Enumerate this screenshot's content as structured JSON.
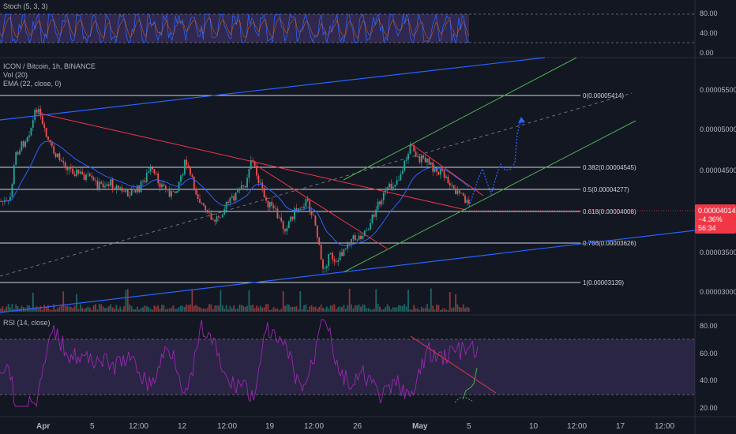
{
  "chart_data": {
    "type": "candlestick",
    "title": "ICON / Bitcoin, 1h, BINANCE",
    "indicators": [
      "Vol (20)",
      "EMA (22, close, 0)"
    ],
    "stoch": {
      "label": "Stoch (5, 3, 3)",
      "ticks": [
        "80.00",
        "40.00",
        "0.00"
      ]
    },
    "rsi": {
      "label": "RSI (14, close)",
      "ticks": [
        "80.00",
        "60.00",
        "40.00",
        "20.00"
      ],
      "band": [
        30,
        70
      ]
    },
    "price_ticks": [
      "0.00005500",
      "0.00005000",
      "0.00004500",
      "0.00003500",
      "0.00003000"
    ],
    "fib_levels": [
      {
        "label": "0(0.00005414)",
        "ratio": 0,
        "price": 5.414e-05
      },
      {
        "label": "0.382(0.00004545)",
        "ratio": 0.382,
        "price": 4.545e-05
      },
      {
        "label": "0.5(0.00004277)",
        "ratio": 0.5,
        "price": 4.277e-05
      },
      {
        "label": "0.618(0.00004008)",
        "ratio": 0.618,
        "price": 4.008e-05
      },
      {
        "label": "0.786(0.00003626)",
        "ratio": 0.786,
        "price": 3.626e-05
      },
      {
        "label": "1(0.00003139)",
        "ratio": 1,
        "price": 3.139e-05
      }
    ],
    "current_price": {
      "price": "0.00004014",
      "change": "−4.36%",
      "countdown": "56:34"
    },
    "x_ticks": [
      "Apr",
      "5",
      "12:00",
      "12",
      "12:00",
      "19",
      "12:00",
      "26",
      "May",
      "5",
      "10",
      "12:00",
      "17",
      "12:00"
    ],
    "colors": {
      "bull": "#26a69a",
      "bear": "#ef5350",
      "accent": "#7e57c2",
      "trend_blue": "#2962ff",
      "channel_green": "#4caf50",
      "down_red": "#f23645",
      "badge": "#f23645"
    }
  }
}
